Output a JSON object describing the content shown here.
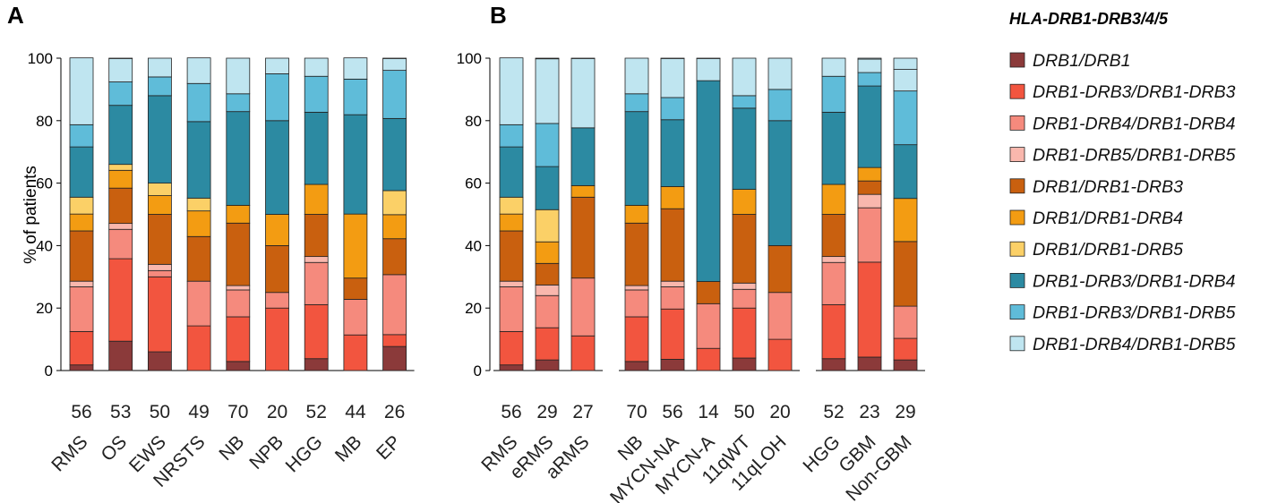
{
  "colors": [
    "#8b3a3a",
    "#f2553f",
    "#f58a7d",
    "#f9b7ad",
    "#c9600f",
    "#f39c12",
    "#fbd067",
    "#2c8aa2",
    "#5fbcd9",
    "#bfe5f0"
  ],
  "chart_data": {
    "type": "bar",
    "stacked": true,
    "ylabel": "% of patients",
    "ylim": [
      0,
      100
    ],
    "yticks": [
      0,
      20,
      40,
      60,
      80,
      100
    ],
    "legend": {
      "title": "HLA-DRB1-DRB3/4/5",
      "position": "right",
      "entries": [
        "DRB1/DRB1",
        "DRB1-DRB3/DRB1-DRB3",
        "DRB1-DRB4/DRB1-DRB4",
        "DRB1-DRB5/DRB1-DRB5",
        "DRB1/DRB1-DRB3",
        "DRB1/DRB1-DRB4",
        "DRB1/DRB1-DRB5",
        "DRB1-DRB3/DRB1-DRB4",
        "DRB1-DRB3/DRB1-DRB5",
        "DRB1-DRB4/DRB1-DRB5"
      ]
    },
    "panels": [
      {
        "label": "A",
        "categories": [
          "RMS",
          "OS",
          "EWS",
          "NRSTS",
          "NB",
          "NPB",
          "HGG",
          "MB",
          "EP"
        ],
        "n": [
          "56",
          "53",
          "50",
          "49",
          "70",
          "20",
          "52",
          "44",
          "26"
        ],
        "groups": [
          9
        ],
        "values": [
          [
            1.8,
            10.7,
            14.3,
            1.8,
            16.1,
            5.4,
            5.4,
            16.1,
            7.1,
            21.4
          ],
          [
            9.4,
            26.4,
            9.4,
            1.9,
            11.3,
            5.7,
            1.9,
            18.9,
            7.5,
            7.5
          ],
          [
            6,
            24,
            2,
            2,
            16,
            6,
            4,
            28,
            6,
            6
          ],
          [
            0,
            14.3,
            14.3,
            0,
            14.3,
            8.2,
            4.1,
            24.5,
            12.2,
            8.2
          ],
          [
            2.9,
            14.3,
            8.6,
            1.4,
            20,
            5.7,
            0,
            30,
            5.7,
            11.4
          ],
          [
            0,
            20,
            5,
            0,
            15,
            10,
            0,
            30,
            15,
            5
          ],
          [
            3.8,
            17.3,
            13.5,
            1.9,
            13.5,
            9.6,
            0,
            23.1,
            11.5,
            5.8
          ],
          [
            0,
            11.4,
            11.4,
            0,
            6.8,
            20.5,
            0,
            31.8,
            11.4,
            6.8
          ],
          [
            7.7,
            3.8,
            19.2,
            0,
            11.5,
            7.7,
            7.7,
            23.1,
            15.4,
            3.8
          ]
        ]
      },
      {
        "label": "B",
        "categories": [
          "RMS",
          "eRMS",
          "aRMS",
          "NB",
          "MYCN-NA",
          "MYCN-A",
          "11qWT",
          "11qLOH",
          "HGG",
          "GBM",
          "Non-GBM"
        ],
        "n": [
          "56",
          "29",
          "27",
          "70",
          "56",
          "14",
          "50",
          "20",
          "52",
          "23",
          "29"
        ],
        "groups": [
          3,
          5,
          3
        ],
        "values": [
          [
            1.8,
            10.7,
            14.3,
            1.8,
            16.1,
            5.4,
            5.4,
            16.1,
            7.1,
            21.4
          ],
          [
            3.4,
            10.3,
            10.3,
            3.4,
            6.9,
            6.9,
            10.3,
            13.8,
            13.8,
            20.7
          ],
          [
            0,
            11.1,
            18.5,
            0,
            25.9,
            3.7,
            0,
            18.5,
            0,
            22.2
          ],
          [
            2.9,
            14.3,
            8.6,
            1.4,
            20,
            5.7,
            0,
            30,
            5.7,
            11.4
          ],
          [
            3.6,
            16.1,
            7.1,
            1.8,
            23.2,
            7.1,
            0,
            21.4,
            7.1,
            12.5
          ],
          [
            0,
            7.1,
            14.3,
            0,
            7.1,
            0,
            0,
            64.3,
            0,
            7.1
          ],
          [
            4,
            16,
            6,
            2,
            22,
            8,
            0,
            26,
            4,
            12
          ],
          [
            0,
            10,
            15,
            0,
            15,
            0,
            0,
            40,
            10,
            10
          ],
          [
            3.8,
            17.3,
            13.5,
            1.9,
            13.5,
            9.6,
            0,
            23.1,
            11.5,
            5.8
          ],
          [
            4.3,
            30.4,
            17.4,
            4.3,
            4.3,
            4.3,
            0,
            26.1,
            4.3,
            4.3
          ],
          [
            3.4,
            6.9,
            10.3,
            0,
            20.7,
            13.8,
            0,
            17.2,
            17.2,
            6.9
          ]
        ]
      }
    ]
  }
}
